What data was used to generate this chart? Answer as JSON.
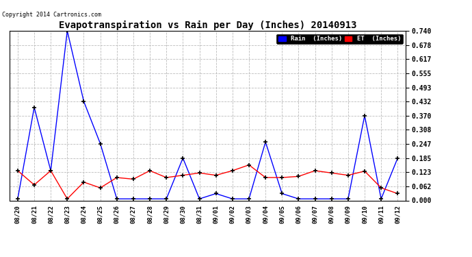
{
  "title": "Evapotranspiration vs Rain per Day (Inches) 20140913",
  "copyright": "Copyright 2014 Cartronics.com",
  "x_labels": [
    "08/20",
    "08/21",
    "08/22",
    "08/23",
    "08/24",
    "08/25",
    "08/26",
    "08/27",
    "08/28",
    "08/29",
    "08/30",
    "08/31",
    "09/01",
    "09/02",
    "09/03",
    "09/04",
    "09/05",
    "09/06",
    "09/07",
    "09/08",
    "09/09",
    "09/10",
    "09/11",
    "09/12"
  ],
  "rain_values": [
    0.007,
    0.406,
    0.13,
    0.74,
    0.432,
    0.248,
    0.007,
    0.007,
    0.007,
    0.007,
    0.185,
    0.007,
    0.03,
    0.007,
    0.007,
    0.255,
    0.03,
    0.007,
    0.007,
    0.007,
    0.007,
    0.37,
    0.007,
    0.185
  ],
  "et_values": [
    0.13,
    0.068,
    0.13,
    0.007,
    0.08,
    0.055,
    0.1,
    0.093,
    0.13,
    0.1,
    0.11,
    0.12,
    0.11,
    0.13,
    0.155,
    0.1,
    0.1,
    0.105,
    0.13,
    0.12,
    0.11,
    0.128,
    0.055,
    0.03
  ],
  "rain_color": "#0000ff",
  "et_color": "#ff0000",
  "bg_color": "#ffffff",
  "grid_color": "#bbbbbb",
  "y_ticks": [
    0.0,
    0.062,
    0.123,
    0.185,
    0.247,
    0.308,
    0.37,
    0.432,
    0.493,
    0.555,
    0.617,
    0.678,
    0.74
  ],
  "ylim": [
    0.0,
    0.74
  ],
  "legend_rain_label": "Rain  (Inches)",
  "legend_et_label": "ET  (Inches)",
  "legend_rain_bg": "#0000ff",
  "legend_et_bg": "#ff0000",
  "legend_frame_bg": "#000000"
}
